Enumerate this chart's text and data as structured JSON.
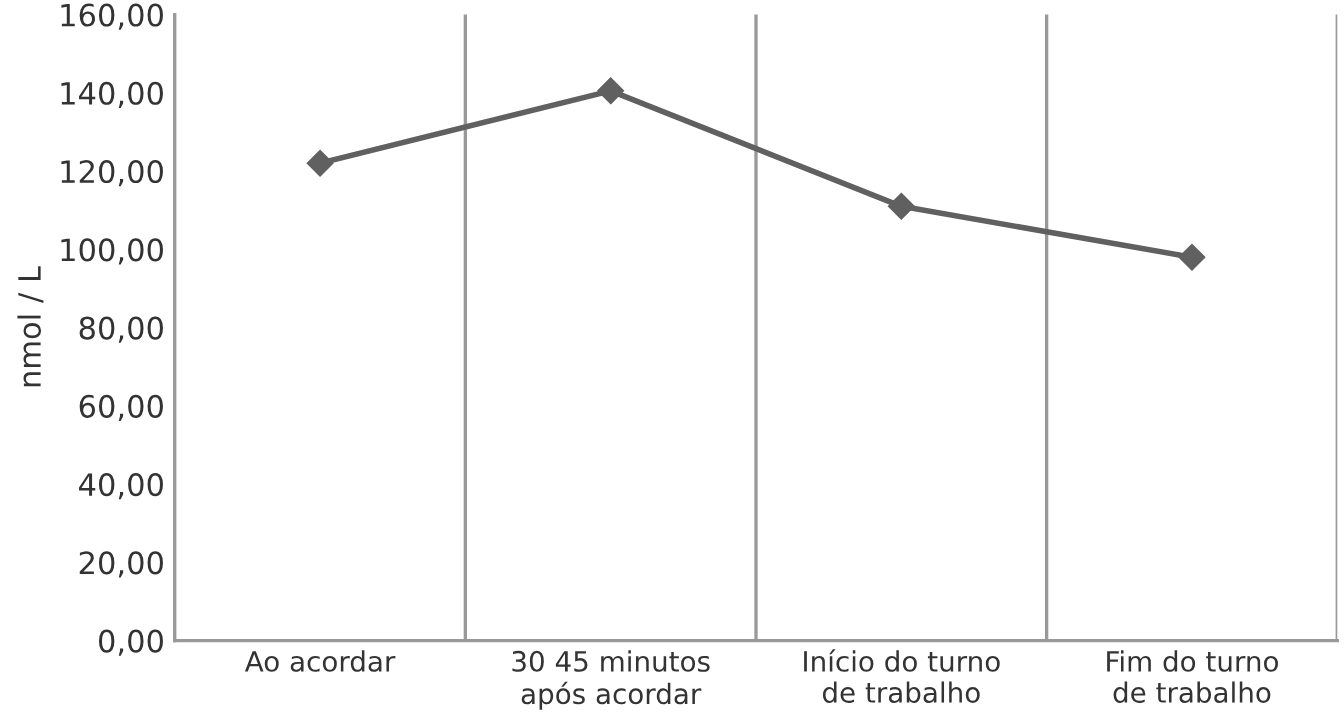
{
  "chart_data": {
    "type": "line",
    "ylabel": "nmol / L",
    "categories": [
      "Ao acordar",
      "30 45 minutos\napós acordar",
      "Início do turno\nde trabalho",
      "Fim do turno\nde trabalho"
    ],
    "series": [
      {
        "color": "#606060",
        "values": [
          122,
          140.5,
          111,
          98
        ]
      }
    ],
    "ylim": [
      0,
      160
    ],
    "yticks": [
      {
        "value": 0,
        "label": "0,00"
      },
      {
        "value": 20,
        "label": "20,00"
      },
      {
        "value": 40,
        "label": "40,00"
      },
      {
        "value": 60,
        "label": "60,00"
      },
      {
        "value": 80,
        "label": "80,00"
      },
      {
        "value": 100,
        "label": "100,00"
      },
      {
        "value": 120,
        "label": "120,00"
      },
      {
        "value": 140,
        "label": "140,00"
      },
      {
        "value": 160,
        "label": "160,00"
      }
    ],
    "grid": "x",
    "marker": "diamond",
    "line_style": "solid"
  }
}
